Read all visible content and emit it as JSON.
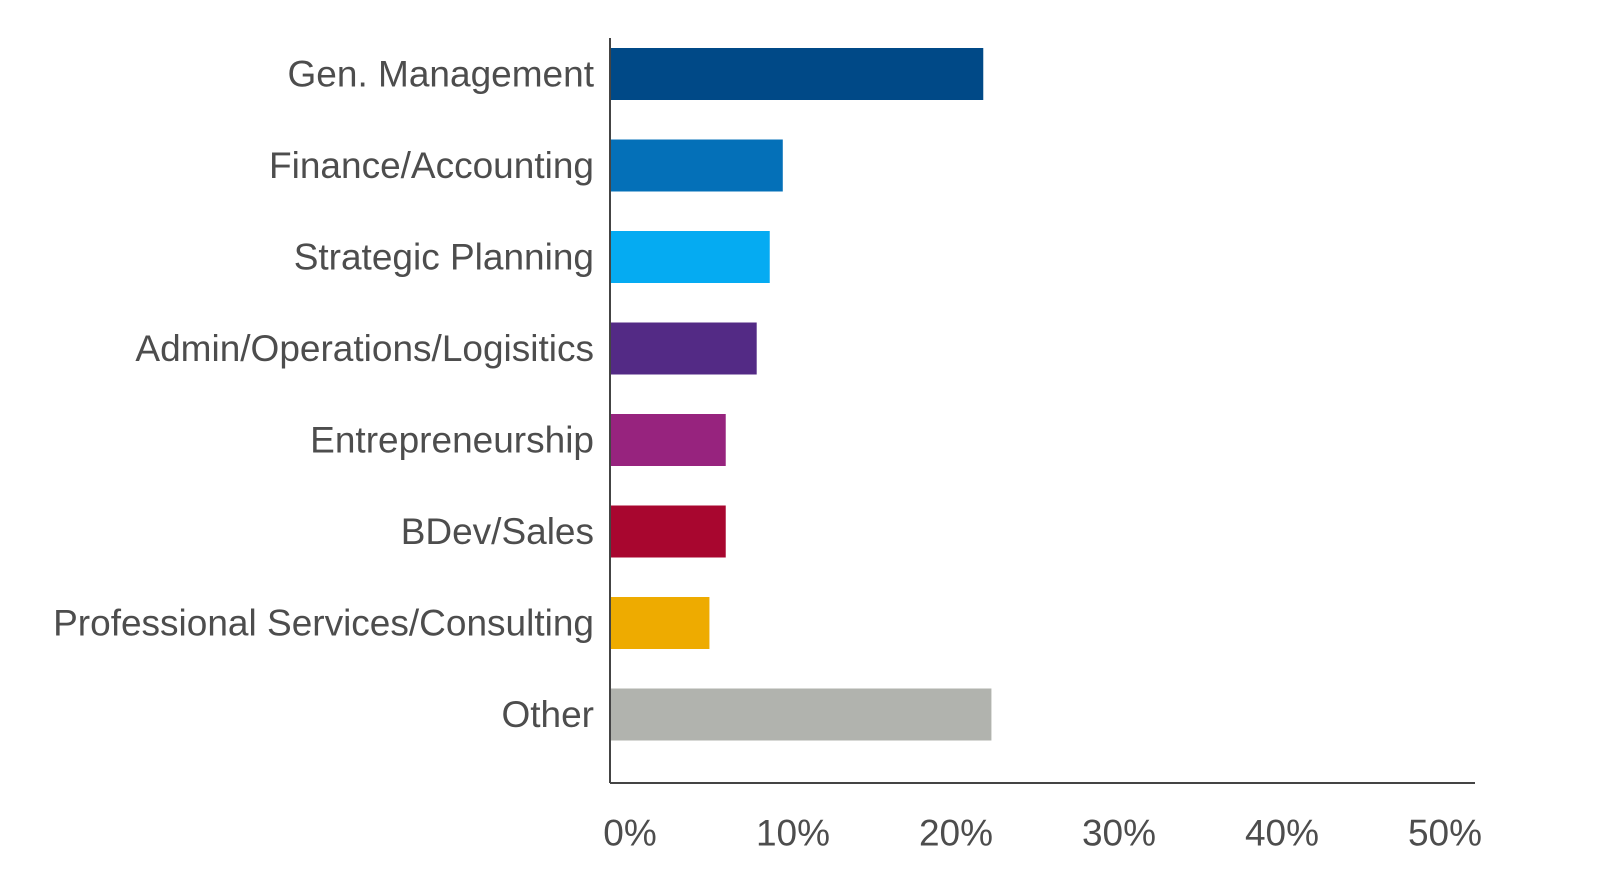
{
  "chart_data": {
    "type": "bar",
    "orientation": "horizontal",
    "title": "",
    "xlabel": "",
    "ylabel": "",
    "categories": [
      "Gen. Management",
      "Finance/Accounting",
      "Strategic Planning",
      "Admin/Operations/Logisitics",
      "Entrepreneurship",
      "BDev/Sales",
      "Professional Services/Consulting",
      "Other"
    ],
    "values": [
      22.9,
      10.6,
      9.8,
      9.0,
      7.1,
      7.1,
      6.1,
      23.4
    ],
    "colors": [
      "#004987",
      "#0470b8",
      "#05abf2",
      "#532a85",
      "#97237e",
      "#a8062f",
      "#eeab00",
      "#b1b3ae"
    ],
    "xlim": [
      0,
      53
    ],
    "xticks": [
      0,
      10,
      20,
      30,
      40,
      50
    ],
    "xtick_labels": [
      "0%",
      "10%",
      "20%",
      "30%",
      "40%",
      "50%"
    ],
    "grid": false,
    "legend": "none"
  }
}
